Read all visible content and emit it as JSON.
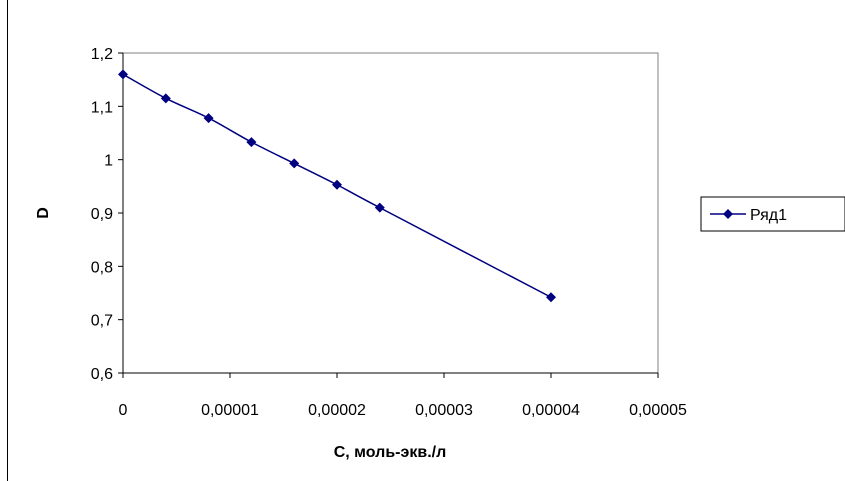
{
  "chart_data": {
    "type": "line",
    "title": "",
    "xlabel": "C, моль-экв./л",
    "ylabel": "D",
    "xlim": [
      0,
      5e-05
    ],
    "ylim": [
      0.6,
      1.2
    ],
    "x_ticks": [
      0,
      1e-05,
      2e-05,
      3e-05,
      4e-05,
      5e-05
    ],
    "x_tick_labels": [
      "0",
      "0,00001",
      "0,00002",
      "0,00003",
      "0,00004",
      "0,00005"
    ],
    "y_ticks": [
      0.6,
      0.7,
      0.8,
      0.9,
      1.0,
      1.1,
      1.2
    ],
    "y_tick_labels": [
      "0,6",
      "0,7",
      "0,8",
      "0,9",
      "1",
      "1,1",
      "1,2"
    ],
    "grid": false,
    "legend_position": "right",
    "series": [
      {
        "name": "Ряд1",
        "color": "#000080",
        "marker": "diamond",
        "smooth": true,
        "x": [
          0,
          4e-06,
          8e-06,
          1.2e-05,
          1.6e-05,
          2e-05,
          2.4e-05,
          4e-05
        ],
        "y": [
          1.16,
          1.115,
          1.078,
          1.033,
          0.993,
          0.953,
          0.91,
          0.742
        ]
      }
    ]
  }
}
